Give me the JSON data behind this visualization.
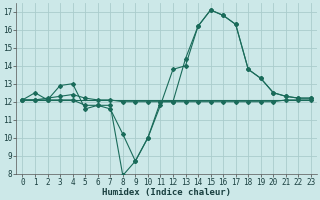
{
  "title": "",
  "xlabel": "Humidex (Indice chaleur)",
  "ylabel": "",
  "bg_color": "#cce8e8",
  "grid_color": "#aacccc",
  "line_color": "#1a6b5a",
  "x_data": [
    0,
    1,
    2,
    3,
    4,
    5,
    6,
    7,
    8,
    9,
    10,
    11,
    12,
    13,
    14,
    15,
    16,
    17,
    18,
    19,
    20,
    21,
    22,
    23
  ],
  "series1": [
    12.1,
    12.5,
    12.1,
    12.9,
    13.0,
    11.6,
    11.8,
    11.6,
    10.2,
    8.7,
    10.0,
    12.0,
    12.0,
    12.0,
    12.0,
    12.0,
    12.0,
    12.0,
    12.0,
    12.0,
    12.0,
    12.1,
    12.1,
    12.1
  ],
  "series2": [
    12.1,
    12.1,
    12.1,
    12.1,
    12.1,
    11.8,
    11.8,
    11.8,
    7.9,
    8.7,
    10.0,
    11.8,
    13.8,
    14.0,
    16.2,
    17.1,
    16.8,
    16.3,
    13.8,
    13.3,
    12.5,
    12.3,
    12.2,
    12.2
  ],
  "series3": [
    12.1,
    12.1,
    12.2,
    12.3,
    12.4,
    12.2,
    12.1,
    12.1,
    12.0,
    12.0,
    12.0,
    12.0,
    12.0,
    14.4,
    16.2,
    17.1,
    16.8,
    16.3,
    13.8,
    13.3,
    12.5,
    12.3,
    12.2,
    12.2
  ],
  "series4": [
    12.1,
    12.1,
    12.1,
    12.1,
    12.1,
    12.1,
    12.1,
    12.1,
    12.1,
    12.1,
    12.1,
    12.1,
    12.1,
    12.1,
    12.1,
    12.1,
    12.1,
    12.1,
    12.1,
    12.1,
    12.1,
    12.1,
    12.1,
    12.1
  ],
  "ylim": [
    8,
    17.5
  ],
  "xlim": [
    -0.5,
    23.5
  ],
  "yticks": [
    8,
    9,
    10,
    11,
    12,
    13,
    14,
    15,
    16,
    17
  ],
  "xticks": [
    0,
    1,
    2,
    3,
    4,
    5,
    6,
    7,
    8,
    9,
    10,
    11,
    12,
    13,
    14,
    15,
    16,
    17,
    18,
    19,
    20,
    21,
    22,
    23
  ]
}
